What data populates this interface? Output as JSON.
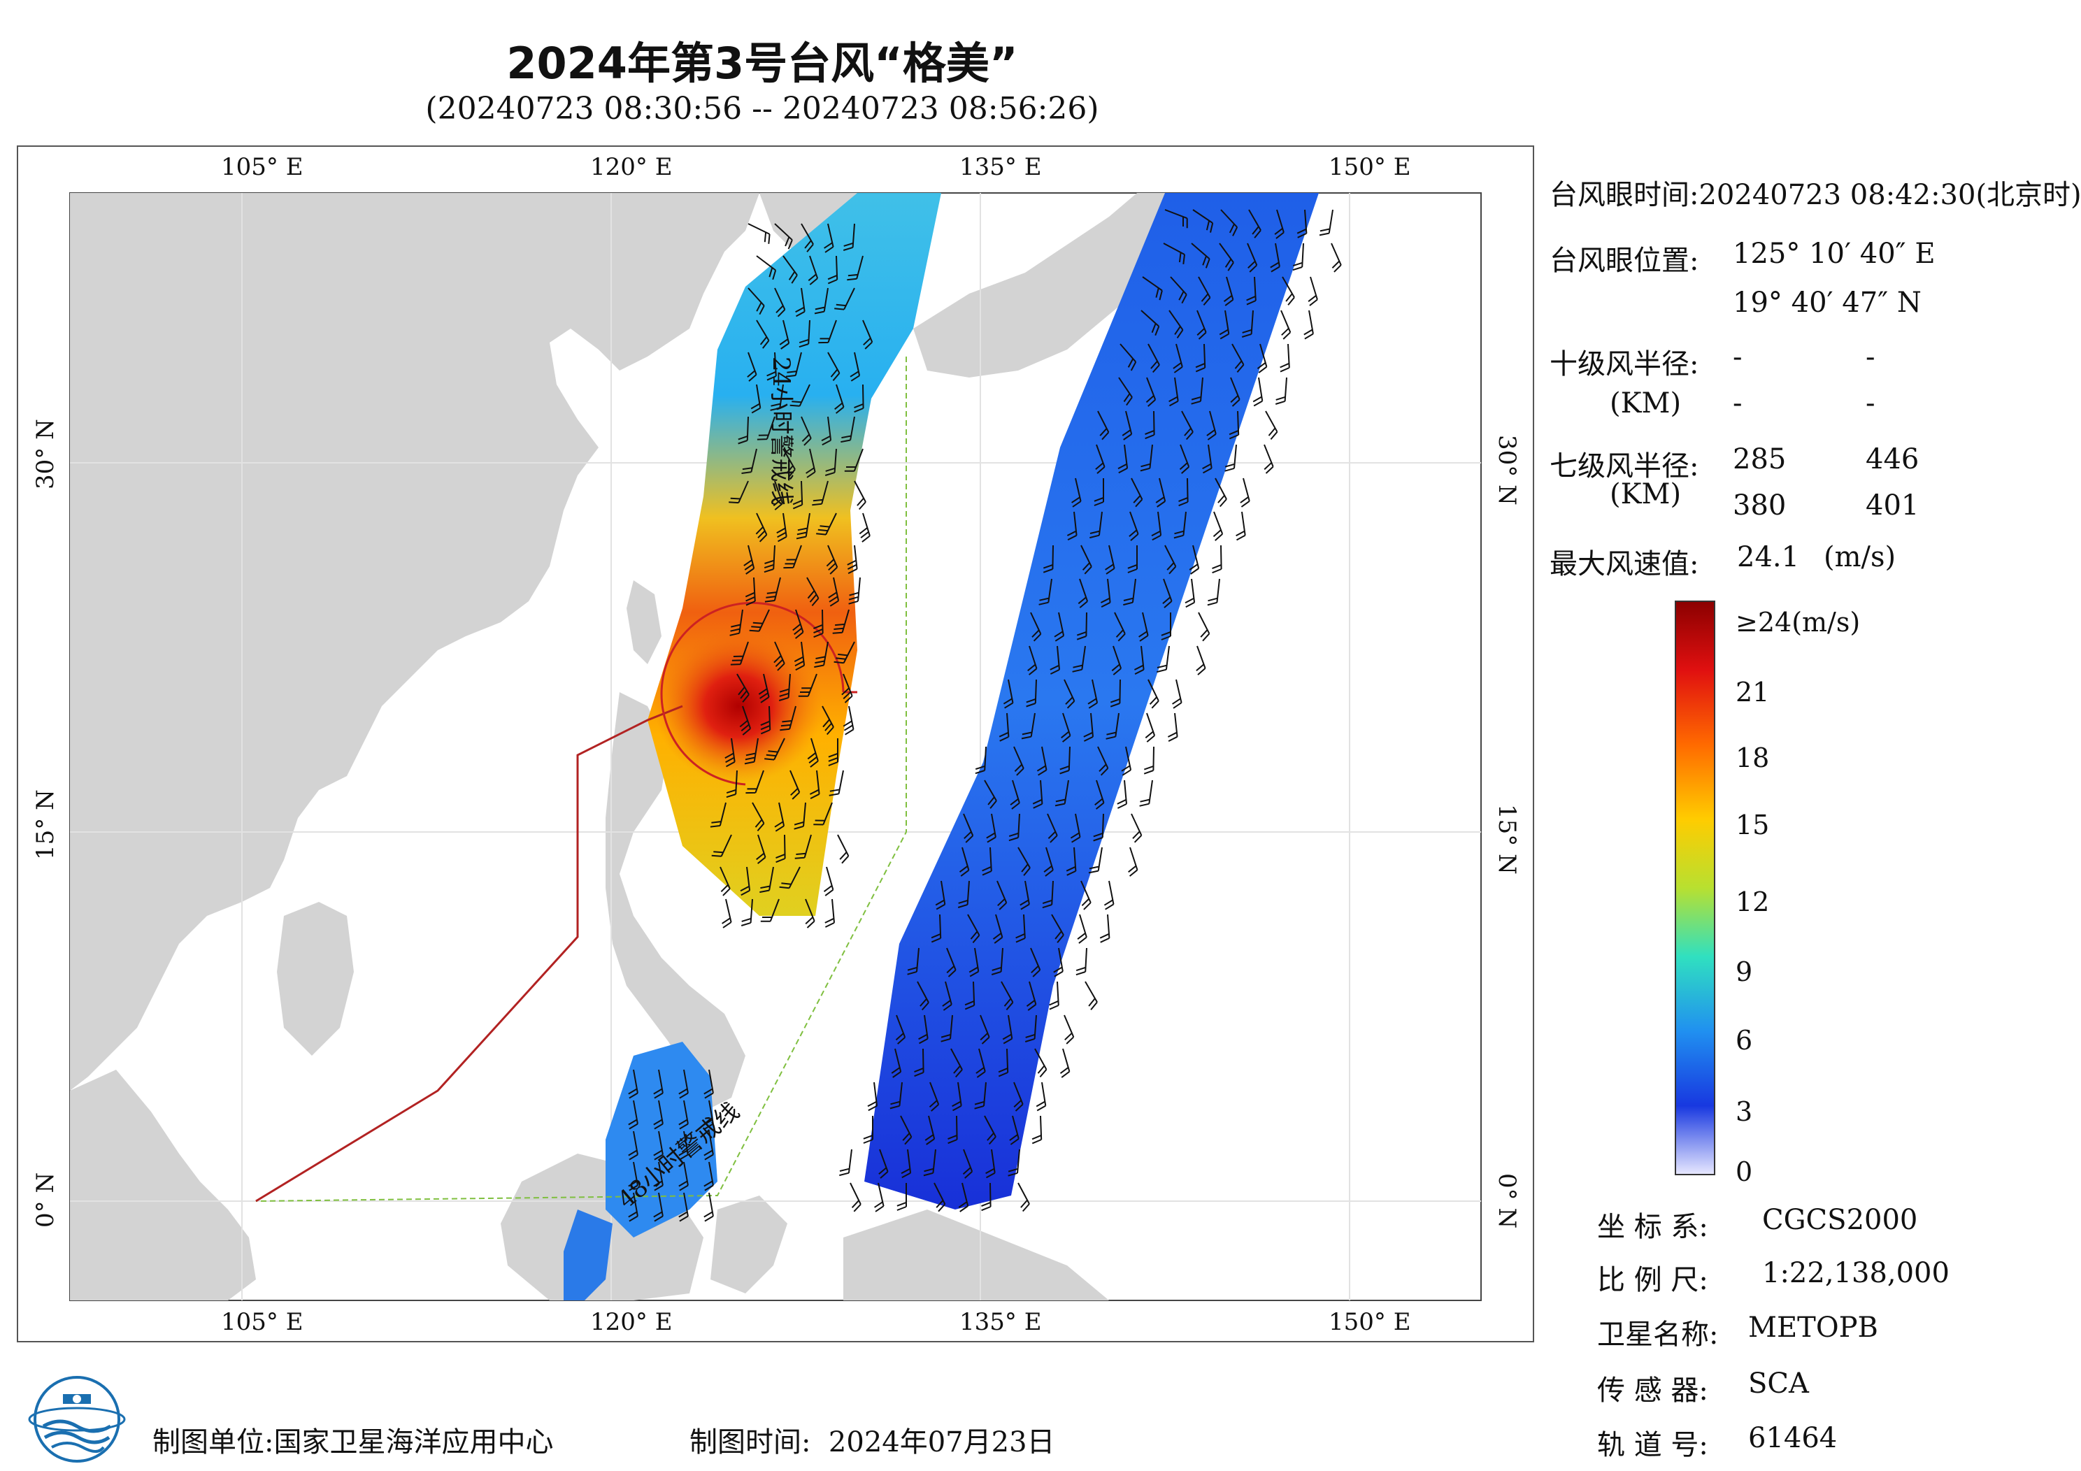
{
  "header": {
    "title": "2024年第3号台风“格美”",
    "subtitle": "(20240723 08:30:56 -- 20240723 08:56:26)"
  },
  "map": {
    "top_lon_labels": [
      "105° E",
      "120° E",
      "135° E",
      "150° E"
    ],
    "bottom_lon_labels": [
      "105° E",
      "120° E",
      "135° E",
      "150° E"
    ],
    "lat_labels": [
      "30° N",
      "15° N",
      "0° N"
    ],
    "line_24h": "24小时警戒线",
    "line_48h": "48小时警戒线",
    "colors": {
      "land": "#d3d3d3",
      "sea": "#ffffff",
      "alert_24h": "#7fbf3f",
      "alert_48h": "#b22222",
      "radius_circle": "#cc2222"
    }
  },
  "info": {
    "eye_time_label": "台风眼时间:",
    "eye_time_value": "20240723 08:42:30(北京时)",
    "eye_pos_label": "台风眼位置:",
    "eye_lon": "125° 10′ 40″ E",
    "eye_lat": "19° 40′ 47″ N",
    "r10_label": "十级风半径:",
    "r10_unit": "(KM)",
    "r10_values": [
      "-",
      "-",
      "-",
      "-"
    ],
    "r7_label": "七级风半径:",
    "r7_unit": "(KM)",
    "r7_values": [
      "285",
      "446",
      "380",
      "401"
    ],
    "max_wind_label": "最大风速值:",
    "max_wind_value": "24.1",
    "max_wind_unit": "(m/s)"
  },
  "colorbar": {
    "labels": [
      "≥24(m/s)",
      "21",
      "18",
      "15",
      "12",
      "9",
      "6",
      "3",
      "0"
    ],
    "stops": [
      "#8b0000",
      "#e01010",
      "#ff6a00",
      "#ffcc00",
      "#b8e030",
      "#30e0c0",
      "#2090f0",
      "#1838e0",
      "#e8e8ff"
    ]
  },
  "meta": {
    "crs_label": "坐 标 系:",
    "crs_value": "CGCS2000",
    "scale_label": "比 例 尺:",
    "scale_value": "1:22,138,000",
    "sat_label": "卫星名称:",
    "sat_value": "METOPB",
    "sensor_label": "传 感 器:",
    "sensor_value": "SCA",
    "orbit_label": "轨 道 号:",
    "orbit_value": "61464"
  },
  "footer": {
    "org_label": "制图单位:",
    "org_value": "国家卫星海洋应用中心",
    "time_label": "制图时间:",
    "time_value": "2024年07月23日"
  }
}
